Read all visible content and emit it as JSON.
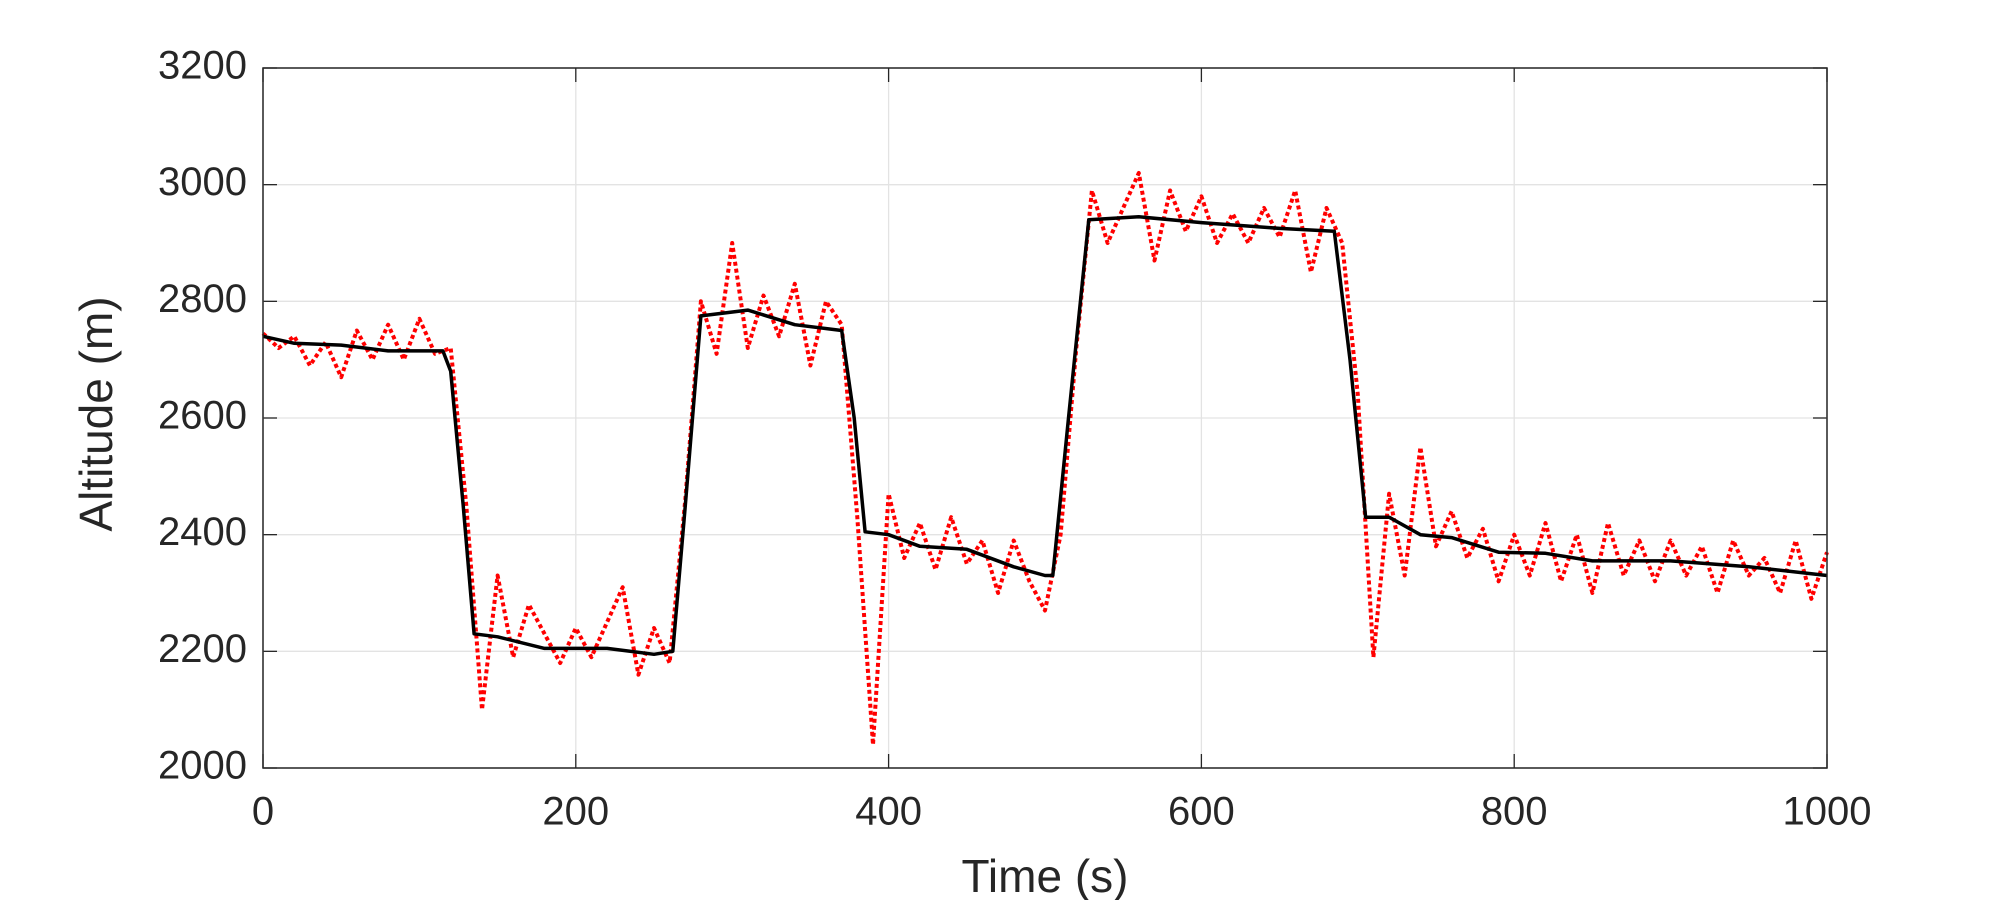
{
  "chart_data": {
    "type": "line",
    "xlabel": "Time (s)",
    "ylabel": "Altitude (m)",
    "xlim": [
      0,
      1000
    ],
    "xticks": [
      0,
      200,
      400,
      600,
      800,
      1000
    ],
    "ylim": [
      2000,
      3200
    ],
    "yticks": [
      2000,
      2200,
      2400,
      2600,
      2800,
      3000,
      3200
    ],
    "grid": true,
    "series": [
      {
        "color": "#ff0000",
        "style": "dotted",
        "x": [
          0,
          10,
          20,
          30,
          40,
          50,
          60,
          70,
          80,
          90,
          100,
          110,
          120,
          130,
          140,
          150,
          160,
          170,
          180,
          190,
          200,
          210,
          220,
          230,
          240,
          250,
          260,
          270,
          280,
          290,
          300,
          310,
          320,
          330,
          340,
          350,
          360,
          370,
          380,
          390,
          400,
          410,
          420,
          430,
          440,
          450,
          460,
          470,
          480,
          490,
          500,
          510,
          520,
          530,
          540,
          550,
          560,
          570,
          580,
          590,
          600,
          610,
          620,
          630,
          640,
          650,
          660,
          670,
          680,
          690,
          700,
          710,
          720,
          730,
          740,
          750,
          760,
          770,
          780,
          790,
          800,
          810,
          820,
          830,
          840,
          850,
          860,
          870,
          880,
          890,
          900,
          910,
          920,
          930,
          940,
          950,
          960,
          970,
          980,
          990,
          1000
        ],
        "values": [
          2745,
          2720,
          2740,
          2690,
          2730,
          2670,
          2750,
          2700,
          2760,
          2700,
          2770,
          2710,
          2720,
          2450,
          2100,
          2330,
          2190,
          2280,
          2230,
          2180,
          2240,
          2190,
          2250,
          2310,
          2160,
          2240,
          2180,
          2460,
          2800,
          2710,
          2900,
          2720,
          2810,
          2740,
          2830,
          2690,
          2800,
          2760,
          2430,
          2040,
          2470,
          2360,
          2420,
          2340,
          2430,
          2350,
          2390,
          2300,
          2390,
          2320,
          2270,
          2400,
          2720,
          2990,
          2900,
          2960,
          3020,
          2870,
          2990,
          2920,
          2980,
          2900,
          2950,
          2900,
          2960,
          2910,
          2990,
          2850,
          2960,
          2900,
          2640,
          2190,
          2470,
          2330,
          2550,
          2380,
          2440,
          2360,
          2410,
          2320,
          2400,
          2330,
          2420,
          2320,
          2400,
          2300,
          2420,
          2330,
          2390,
          2320,
          2390,
          2330,
          2380,
          2300,
          2390,
          2330,
          2360,
          2300,
          2390,
          2290,
          2370
        ]
      },
      {
        "color": "#000000",
        "style": "solid",
        "x": [
          0,
          20,
          50,
          80,
          115,
          120,
          128,
          135,
          150,
          180,
          220,
          250,
          262,
          270,
          280,
          310,
          340,
          370,
          378,
          385,
          400,
          420,
          450,
          480,
          500,
          505,
          515,
          528,
          560,
          600,
          650,
          685,
          695,
          705,
          720,
          740,
          760,
          790,
          820,
          850,
          900,
          950,
          1000
        ],
        "values": [
          2740,
          2728,
          2725,
          2715,
          2715,
          2680,
          2450,
          2230,
          2225,
          2205,
          2205,
          2195,
          2200,
          2450,
          2775,
          2785,
          2760,
          2750,
          2600,
          2405,
          2400,
          2380,
          2375,
          2345,
          2330,
          2330,
          2600,
          2940,
          2945,
          2935,
          2925,
          2920,
          2700,
          2430,
          2430,
          2400,
          2395,
          2370,
          2368,
          2355,
          2355,
          2345,
          2330
        ]
      }
    ]
  }
}
